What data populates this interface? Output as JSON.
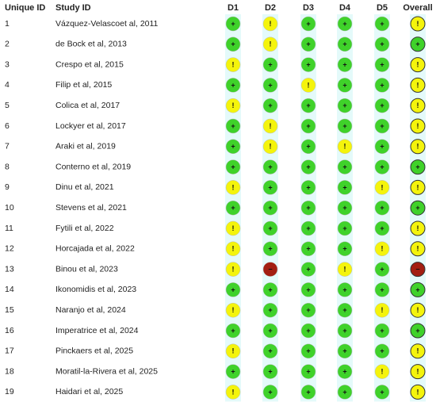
{
  "table": {
    "header": [
      "Unique ID",
      "Study ID",
      "D1",
      "D2",
      "D3",
      "D4",
      "D5",
      "Overall"
    ],
    "colors": {
      "+": "#3fd22a",
      "!": "#f4f40c",
      "−": "#a31f12"
    },
    "rows": [
      [
        "1",
        "Vázquez-Velascoet al, 2011",
        "+",
        "!",
        "+",
        "+",
        "+",
        "!"
      ],
      [
        "2",
        "de Bock et al, 2013",
        "+",
        "!",
        "+",
        "+",
        "+",
        "+"
      ],
      [
        "3",
        "Crespo et al, 2015",
        "!",
        "+",
        "+",
        "+",
        "+",
        "!"
      ],
      [
        "4",
        "Filip et al, 2015",
        "+",
        "+",
        "!",
        "+",
        "+",
        "!"
      ],
      [
        "5",
        "Colica et al, 2017",
        "!",
        "+",
        "+",
        "+",
        "+",
        "!"
      ],
      [
        "6",
        "Lockyer et al, 2017",
        "+",
        "!",
        "+",
        "+",
        "+",
        "!"
      ],
      [
        "7",
        "Araki et al, 2019",
        "+",
        "!",
        "+",
        "!",
        "+",
        "!"
      ],
      [
        "8",
        "Conterno et al, 2019",
        "+",
        "+",
        "+",
        "+",
        "+",
        "+"
      ],
      [
        "9",
        "Dinu et al, 2021",
        "!",
        "+",
        "+",
        "+",
        "!",
        "!"
      ],
      [
        "10",
        "Stevens et al, 2021",
        "+",
        "+",
        "+",
        "+",
        "+",
        "+"
      ],
      [
        "11",
        "Fytili et al, 2022",
        "!",
        "+",
        "+",
        "+",
        "+",
        "!"
      ],
      [
        "12",
        "Horcajada et al, 2022",
        "!",
        "+",
        "+",
        "+",
        "!",
        "!"
      ],
      [
        "13",
        "Binou et al, 2023",
        "!",
        "−",
        "+",
        "!",
        "+",
        "−"
      ],
      [
        "14",
        "Ikonomidis et al, 2023",
        "+",
        "+",
        "+",
        "+",
        "+",
        "+"
      ],
      [
        "15",
        "Naranjo et al, 2024",
        "!",
        "+",
        "+",
        "+",
        "!",
        "!"
      ],
      [
        "16",
        "Imperatrice et al, 2024",
        "+",
        "+",
        "+",
        "+",
        "+",
        "+"
      ],
      [
        "17",
        "Pinckaers et al, 2025",
        "!",
        "+",
        "+",
        "+",
        "+",
        "!"
      ],
      [
        "18",
        "Moratil-la-Rivera et al, 2025",
        "+",
        "+",
        "+",
        "+",
        "!",
        "!"
      ],
      [
        "19",
        "Haidari et al, 2025",
        "!",
        "+",
        "+",
        "+",
        "+",
        "!"
      ]
    ]
  }
}
